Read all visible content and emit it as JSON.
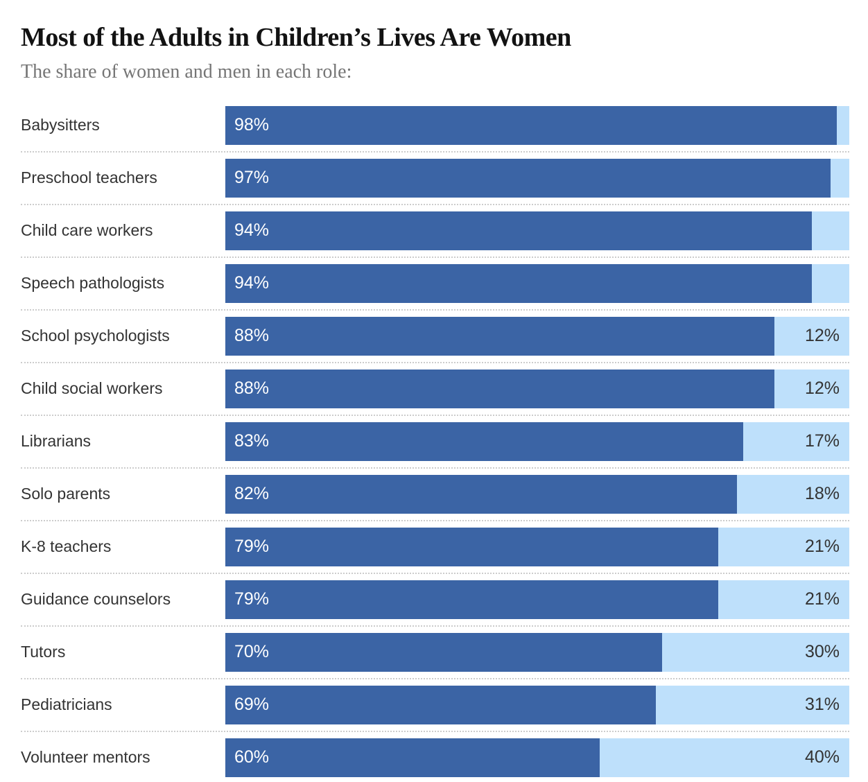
{
  "header": {
    "title": "Most of the Adults in Children’s Lives Are Women",
    "subtitle": "The share of women and men in each role:"
  },
  "chart_data": {
    "type": "bar",
    "orientation": "horizontal",
    "stacked": true,
    "title": "Most of the Adults in Children’s Lives Are Women",
    "subtitle": "The share of women and men in each role:",
    "xlim": [
      0,
      100
    ],
    "grid": false,
    "legend": "none",
    "colors": {
      "women": "#3b64a5",
      "men": "#bee0fb"
    },
    "categories": [
      "Babysitters",
      "Preschool teachers",
      "Child care workers",
      "Speech pathologists",
      "School psychologists",
      "Child social workers",
      "Librarians",
      "Solo parents",
      "K-8 teachers",
      "Guidance counselors",
      "Tutors",
      "Pediatricians",
      "Volunteer mentors"
    ],
    "series": [
      {
        "name": "Women",
        "values": [
          98,
          97,
          94,
          94,
          88,
          88,
          83,
          82,
          79,
          79,
          70,
          69,
          60
        ]
      },
      {
        "name": "Men",
        "values": [
          2,
          3,
          6,
          6,
          12,
          12,
          17,
          18,
          21,
          21,
          30,
          31,
          40
        ]
      }
    ],
    "rows": [
      {
        "label": "Babysitters",
        "women": 98,
        "men": 2,
        "women_label": "98%",
        "men_label": ""
      },
      {
        "label": "Preschool teachers",
        "women": 97,
        "men": 3,
        "women_label": "97%",
        "men_label": ""
      },
      {
        "label": "Child care workers",
        "women": 94,
        "men": 6,
        "women_label": "94%",
        "men_label": ""
      },
      {
        "label": "Speech pathologists",
        "women": 94,
        "men": 6,
        "women_label": "94%",
        "men_label": ""
      },
      {
        "label": "School psychologists",
        "women": 88,
        "men": 12,
        "women_label": "88%",
        "men_label": "12%"
      },
      {
        "label": "Child social workers",
        "women": 88,
        "men": 12,
        "women_label": "88%",
        "men_label": "12%"
      },
      {
        "label": "Librarians",
        "women": 83,
        "men": 17,
        "women_label": "83%",
        "men_label": "17%"
      },
      {
        "label": "Solo parents",
        "women": 82,
        "men": 18,
        "women_label": "82%",
        "men_label": "18%"
      },
      {
        "label": "K-8 teachers",
        "women": 79,
        "men": 21,
        "women_label": "79%",
        "men_label": "21%"
      },
      {
        "label": "Guidance counselors",
        "women": 79,
        "men": 21,
        "women_label": "79%",
        "men_label": "21%"
      },
      {
        "label": "Tutors",
        "women": 70,
        "men": 30,
        "women_label": "70%",
        "men_label": "30%"
      },
      {
        "label": "Pediatricians",
        "women": 69,
        "men": 31,
        "women_label": "69%",
        "men_label": "31%"
      },
      {
        "label": "Volunteer mentors",
        "women": 60,
        "men": 40,
        "women_label": "60%",
        "men_label": "40%"
      }
    ]
  }
}
